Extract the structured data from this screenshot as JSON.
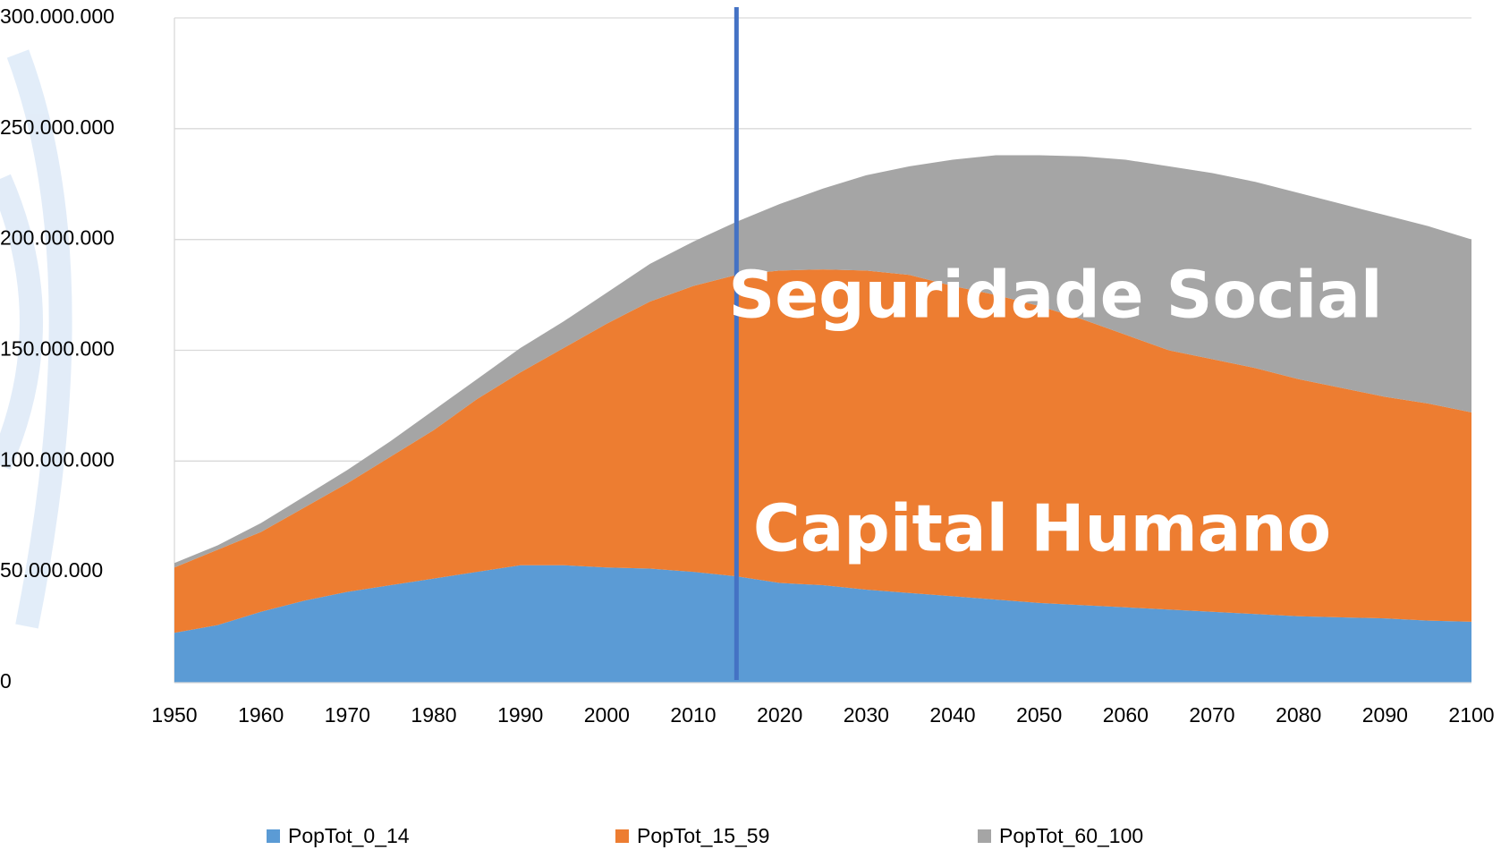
{
  "chart_data": {
    "type": "stacked_area",
    "x": [
      1950,
      1955,
      1960,
      1965,
      1970,
      1975,
      1980,
      1985,
      1990,
      1995,
      2000,
      2005,
      2010,
      2015,
      2020,
      2025,
      2030,
      2035,
      2040,
      2045,
      2050,
      2055,
      2060,
      2065,
      2070,
      2075,
      2080,
      2085,
      2090,
      2095,
      2100
    ],
    "series": [
      {
        "name": "PopTot_0_14",
        "color": "#5b9bd5",
        "values": [
          22500000,
          26000000,
          32000000,
          37000000,
          41000000,
          44000000,
          47000000,
          50000000,
          53000000,
          53000000,
          52000000,
          51500000,
          50000000,
          48000000,
          45000000,
          44000000,
          42000000,
          40500000,
          39000000,
          37500000,
          36000000,
          35000000,
          34000000,
          33000000,
          32000000,
          31000000,
          30000000,
          29500000,
          29000000,
          28000000,
          27500000
        ]
      },
      {
        "name": "PopTot_15_59",
        "color": "#ed7d31",
        "values": [
          29500000,
          34000000,
          36000000,
          42000000,
          49000000,
          58000000,
          67000000,
          78000000,
          87000000,
          98000000,
          110000000,
          120500000,
          129000000,
          136000000,
          141000000,
          142500000,
          144000000,
          143500000,
          140000000,
          137500000,
          134000000,
          129000000,
          123000000,
          117000000,
          114000000,
          111000000,
          107000000,
          103500000,
          100000000,
          98000000,
          94500000
        ]
      },
      {
        "name": "PopTot_60_100",
        "color": "#a5a5a5",
        "values": [
          2000000,
          2000000,
          4000000,
          5000000,
          6000000,
          7000000,
          9000000,
          9000000,
          11000000,
          12000000,
          14000000,
          17000000,
          20000000,
          24000000,
          30000000,
          36500000,
          43000000,
          49000000,
          57000000,
          63000000,
          68000000,
          73500000,
          79000000,
          83000000,
          84000000,
          84000000,
          84000000,
          83000000,
          82000000,
          80000000,
          78000000
        ]
      }
    ],
    "xlim": [
      1950,
      2100
    ],
    "xticks": [
      1950,
      1960,
      1970,
      1980,
      1990,
      2000,
      2010,
      2020,
      2030,
      2040,
      2050,
      2060,
      2070,
      2080,
      2090,
      2100
    ],
    "ylim": [
      0,
      300000000
    ],
    "yticks": [
      0,
      {
        "value": 50000000,
        "label": "50.000.000"
      },
      {
        "value": 100000000,
        "label": "100.000.000"
      },
      {
        "value": 150000000,
        "label": "150.000.000"
      },
      {
        "value": 200000000,
        "label": "200.000.000"
      },
      {
        "value": 250000000,
        "label": "250.000.000"
      },
      {
        "value": 300000000,
        "label": "300.000.000"
      }
    ],
    "grid": true,
    "reference_x": 2015,
    "reference_color": "#4472c4",
    "annotations": [
      "Seguridade Social",
      "Capital Humano"
    ],
    "legend": "bottom"
  }
}
